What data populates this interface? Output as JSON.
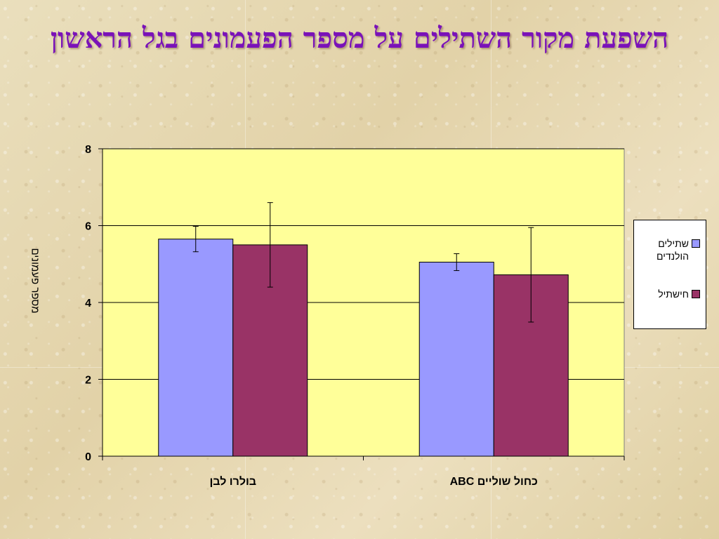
{
  "title": "השפעת מקור השתילים על מספר הפעמונים בגל הראשון",
  "chart_data": {
    "type": "bar",
    "categories": [
      "בולרו לבן",
      "כחול שוליים ABC"
    ],
    "series": [
      {
        "name": "שתילים הולנדים",
        "values": [
          5.65,
          5.05
        ],
        "errors": [
          0.33,
          0.22
        ],
        "color": "#9999ff"
      },
      {
        "name": "חישתיל",
        "values": [
          5.5,
          4.72
        ],
        "errors": [
          1.1,
          1.23
        ],
        "color": "#993366"
      }
    ],
    "ylabel": "מספר פעמונים",
    "xlabel": "",
    "ylim": [
      0,
      8
    ],
    "yticks": [
      0,
      2,
      4,
      6,
      8
    ],
    "grid": true,
    "legend_position": "right",
    "plot_background": "#ffff99"
  }
}
